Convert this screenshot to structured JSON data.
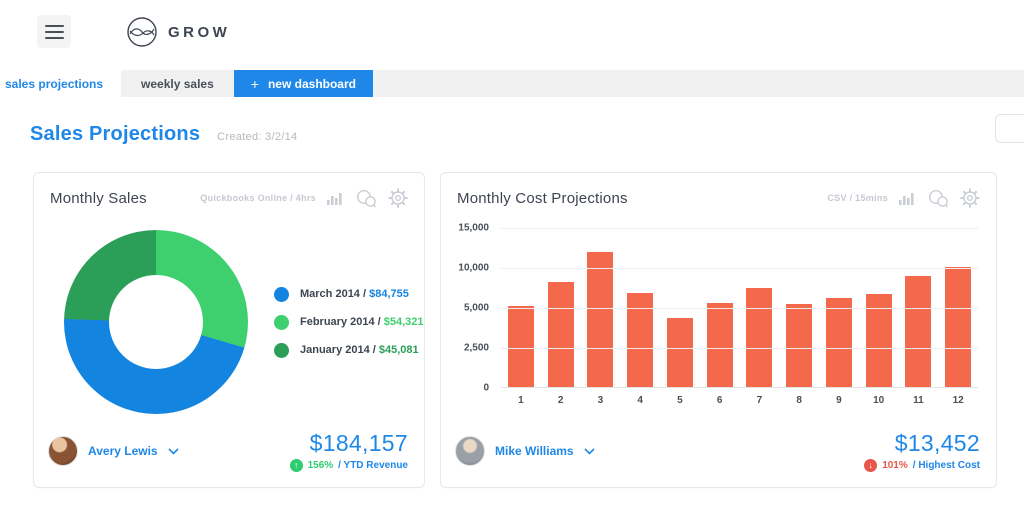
{
  "topbar": {
    "brand": "GROW"
  },
  "tabs": {
    "active": "sales projections",
    "inactive": "weekly sales",
    "plus": "+",
    "new_button": "new dashboard"
  },
  "page": {
    "title": "Sales Projections",
    "created": "Created: 3/2/14"
  },
  "icons": {
    "up_arrow": "↑",
    "down_arrow": "↓"
  },
  "colors": {
    "accent_blue": "#1e87e8",
    "bar_orange": "#f4694c",
    "up_green": "#2ecc71",
    "down_red": "#e8564a"
  },
  "cards": {
    "sales": {
      "title": "Monthly Sales",
      "meta": "Quickbooks Online / 4hrs",
      "owner": "Avery Lewis",
      "total": "$184,157",
      "delta_pct": "156%",
      "delta_label": "/ YTD Revenue",
      "delta_direction": "up"
    },
    "costs": {
      "title": "Monthly Cost Projections",
      "meta": "CSV / 15mins",
      "owner": "Mike Williams",
      "total": "$13,452",
      "delta_pct": "101%",
      "delta_label": "/ Highest Cost",
      "delta_direction": "down"
    }
  },
  "chart_data": [
    {
      "type": "pie",
      "donut": true,
      "title": "Monthly Sales",
      "legend_position": "right",
      "total_display": "$184,157",
      "slices": [
        {
          "label": "March 2014",
          "value": 84755,
          "display": "$84,755",
          "color": "#1385e0"
        },
        {
          "label": "February 2014",
          "value": 54321,
          "display": "$54,321",
          "color": "#3ecf6e"
        },
        {
          "label": "January 2014",
          "value": 45081,
          "display": "$45,081",
          "color": "#2b9e57"
        }
      ],
      "draw_order": [
        1,
        0,
        2
      ]
    },
    {
      "type": "bar",
      "title": "Monthly Cost Projections",
      "categories": [
        "1",
        "2",
        "3",
        "4",
        "5",
        "6",
        "7",
        "8",
        "9",
        "10",
        "11",
        "12"
      ],
      "values": [
        5200,
        8300,
        12000,
        6900,
        4400,
        5600,
        7500,
        5500,
        6300,
        6700,
        9000,
        10100
      ],
      "bar_color": "#f4694c",
      "grid": true,
      "xlabel": "",
      "ylabel": "",
      "yticks": [
        {
          "label": "15,000",
          "value": 15000
        },
        {
          "label": "10,000",
          "value": 10000
        },
        {
          "label": "5,000",
          "value": 5000
        },
        {
          "label": "2,500",
          "value": 2500
        },
        {
          "label": "0",
          "value": 0
        }
      ]
    }
  ]
}
